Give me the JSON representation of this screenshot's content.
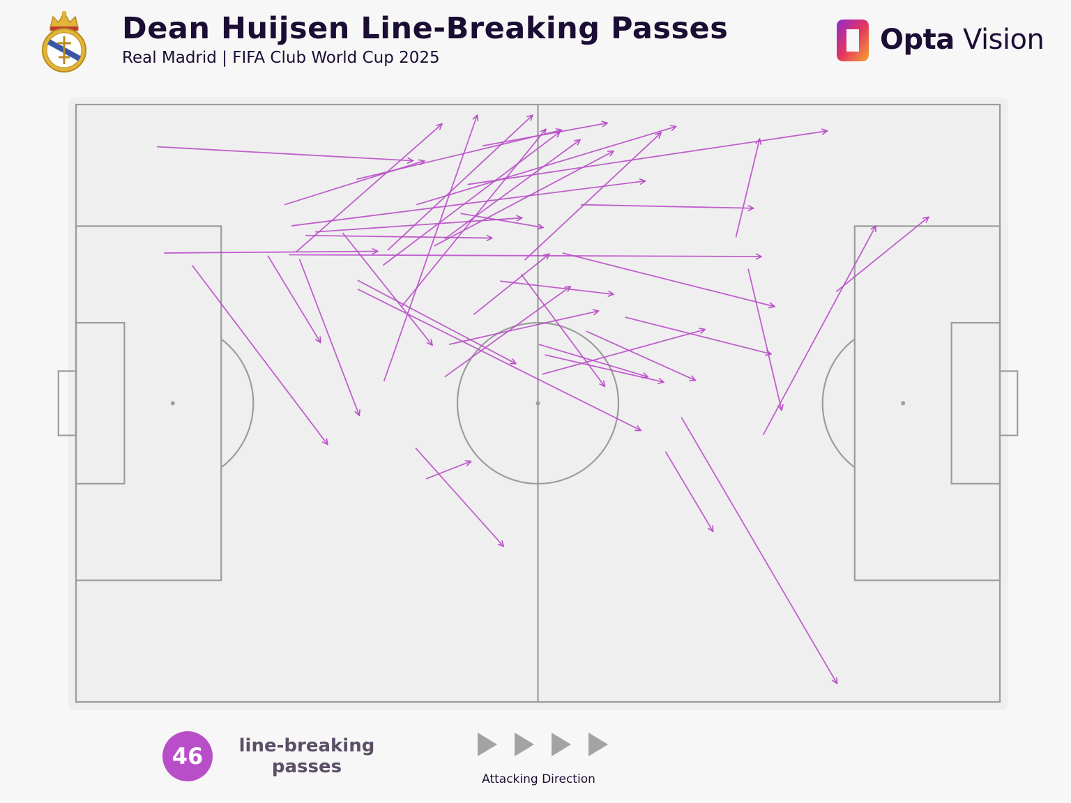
{
  "header": {
    "title": "Dean Huijsen Line-Breaking Passes",
    "subtitle": "Real Madrid | FIFA Club World Cup 2025",
    "crest_icon": "real-madrid-crest-icon",
    "brand": {
      "icon": "opta-logo-icon",
      "name_bold": "Opta",
      "name_light": "Vision",
      "colors": [
        "#8e2bd0",
        "#e4345f",
        "#f6a531"
      ]
    }
  },
  "legend": {
    "count": "46",
    "label": "line-breaking passes",
    "direction_label": "Attacking Direction",
    "badge_color": "#b94fc8",
    "arrow_color": "#a3a3a3"
  },
  "chart_data": {
    "type": "pass-map",
    "pitch": {
      "length": 105,
      "width": 68,
      "attacking_direction": "left-to-right"
    },
    "arrow_color": "#b94fc8",
    "series": [
      {
        "passes": [
          {
            "x1": 9.2,
            "y1": 4.8,
            "x2": 38.3,
            "y2": 6.4
          },
          {
            "x1": 10.0,
            "y1": 16.9,
            "x2": 34.3,
            "y2": 16.7
          },
          {
            "x1": 13.2,
            "y1": 18.3,
            "x2": 28.6,
            "y2": 38.7
          },
          {
            "x1": 23.7,
            "y1": 11.4,
            "x2": 39.6,
            "y2": 6.4
          },
          {
            "x1": 25.0,
            "y1": 16.8,
            "x2": 41.6,
            "y2": 2.2
          },
          {
            "x1": 24.2,
            "y1": 17.1,
            "x2": 77.9,
            "y2": 17.3
          },
          {
            "x1": 21.8,
            "y1": 17.2,
            "x2": 27.8,
            "y2": 27.1
          },
          {
            "x1": 25.4,
            "y1": 17.6,
            "x2": 32.2,
            "y2": 35.4
          },
          {
            "x1": 24.5,
            "y1": 13.8,
            "x2": 64.7,
            "y2": 8.7
          },
          {
            "x1": 26.1,
            "y1": 14.9,
            "x2": 47.3,
            "y2": 15.2
          },
          {
            "x1": 27.2,
            "y1": 14.5,
            "x2": 50.7,
            "y2": 12.9
          },
          {
            "x1": 31.9,
            "y1": 8.5,
            "x2": 55.2,
            "y2": 2.9
          },
          {
            "x1": 30.3,
            "y1": 14.6,
            "x2": 40.5,
            "y2": 27.4
          },
          {
            "x1": 32.0,
            "y1": 20.0,
            "x2": 50.0,
            "y2": 29.5
          },
          {
            "x1": 35.0,
            "y1": 31.5,
            "x2": 45.6,
            "y2": 1.2
          },
          {
            "x1": 35.4,
            "y1": 16.6,
            "x2": 51.9,
            "y2": 1.2
          },
          {
            "x1": 32.0,
            "y1": 21.0,
            "x2": 64.2,
            "y2": 37.1
          },
          {
            "x1": 34.9,
            "y1": 18.3,
            "x2": 55.0,
            "y2": 3.1
          },
          {
            "x1": 37.0,
            "y1": 23.0,
            "x2": 53.4,
            "y2": 2.8
          },
          {
            "x1": 38.6,
            "y1": 39.1,
            "x2": 48.6,
            "y2": 50.3
          },
          {
            "x1": 39.8,
            "y1": 42.6,
            "x2": 44.9,
            "y2": 40.6
          },
          {
            "x1": 38.7,
            "y1": 11.4,
            "x2": 68.2,
            "y2": 2.5
          },
          {
            "x1": 40.7,
            "y1": 16.1,
            "x2": 61.1,
            "y2": 5.3
          },
          {
            "x1": 41.9,
            "y1": 15.3,
            "x2": 57.3,
            "y2": 4.0
          },
          {
            "x1": 42.4,
            "y1": 27.3,
            "x2": 59.4,
            "y2": 23.5
          },
          {
            "x1": 41.9,
            "y1": 31.0,
            "x2": 56.2,
            "y2": 20.7
          },
          {
            "x1": 45.2,
            "y1": 23.9,
            "x2": 53.8,
            "y2": 17.0
          },
          {
            "x1": 44.5,
            "y1": 9.1,
            "x2": 85.4,
            "y2": 3.0
          },
          {
            "x1": 43.7,
            "y1": 12.4,
            "x2": 53.1,
            "y2": 14.0
          },
          {
            "x1": 46.2,
            "y1": 4.7,
            "x2": 60.4,
            "y2": 2.1
          },
          {
            "x1": 48.2,
            "y1": 20.1,
            "x2": 61.1,
            "y2": 21.6
          },
          {
            "x1": 53.0,
            "y1": 30.7,
            "x2": 71.5,
            "y2": 25.6
          },
          {
            "x1": 52.6,
            "y1": 27.3,
            "x2": 65.0,
            "y2": 31.0
          },
          {
            "x1": 50.6,
            "y1": 19.3,
            "x2": 60.1,
            "y2": 32.1
          },
          {
            "x1": 53.3,
            "y1": 28.5,
            "x2": 66.8,
            "y2": 31.6
          },
          {
            "x1": 55.3,
            "y1": 16.9,
            "x2": 79.4,
            "y2": 23.0
          },
          {
            "x1": 57.4,
            "y1": 11.4,
            "x2": 77.0,
            "y2": 11.8
          },
          {
            "x1": 51.0,
            "y1": 17.7,
            "x2": 66.5,
            "y2": 3.2
          },
          {
            "x1": 58.0,
            "y1": 25.8,
            "x2": 70.4,
            "y2": 31.4
          },
          {
            "x1": 67.0,
            "y1": 39.5,
            "x2": 72.4,
            "y2": 48.6
          },
          {
            "x1": 68.8,
            "y1": 35.6,
            "x2": 86.5,
            "y2": 65.9
          },
          {
            "x1": 76.4,
            "y1": 18.7,
            "x2": 80.2,
            "y2": 34.8
          },
          {
            "x1": 78.1,
            "y1": 37.6,
            "x2": 90.9,
            "y2": 13.8
          },
          {
            "x1": 86.4,
            "y1": 21.3,
            "x2": 96.9,
            "y2": 12.8
          },
          {
            "x1": 75.0,
            "y1": 15.1,
            "x2": 77.7,
            "y2": 3.9
          },
          {
            "x1": 62.4,
            "y1": 24.2,
            "x2": 79.0,
            "y2": 28.4
          }
        ]
      }
    ]
  }
}
